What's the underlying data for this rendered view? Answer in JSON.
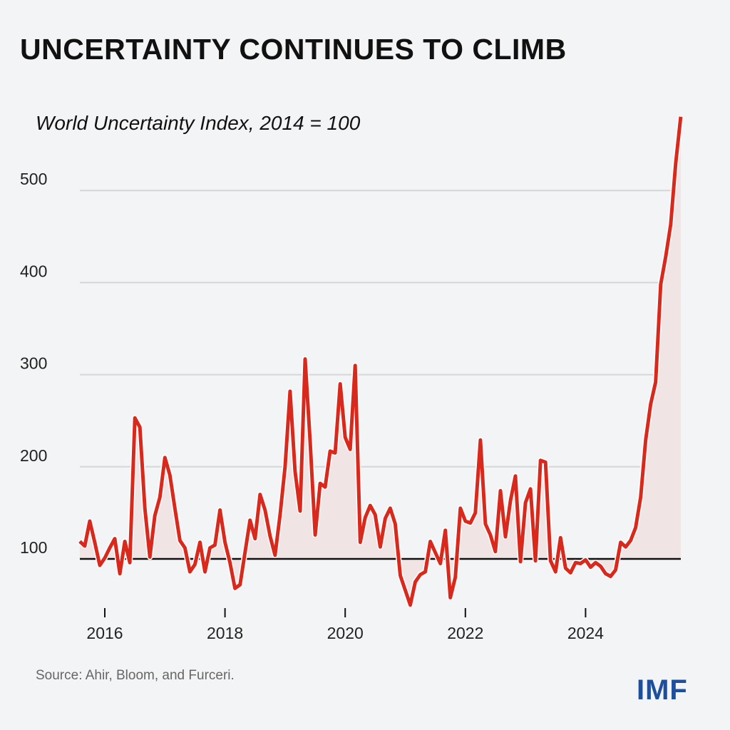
{
  "header": {
    "title": "UNCERTAINTY CONTINUES TO CLIMB",
    "subtitle": "World Uncertainty Index, 2014 = 100"
  },
  "footer": {
    "source": "Source: Ahir, Bloom, and Furceri.",
    "logo_text": "IMF"
  },
  "colors": {
    "line": "#d9291c",
    "fill": "#f0e4e5",
    "gridline": "#d6d6d8",
    "baseline": "#111111",
    "background": "#f3f4f6",
    "logo": "#1e4f9c"
  },
  "chart_data": {
    "type": "line",
    "title": "UNCERTAINTY CONTINUES TO CLIMB",
    "subtitle": "World Uncertainty Index, 2014 = 100",
    "xlabel": "",
    "ylabel": "",
    "x_start": "2015-08",
    "x_frequency": "monthly",
    "x_end": "2025-08",
    "ylim": [
      40,
      580
    ],
    "yticks": [
      100,
      200,
      300,
      400,
      500
    ],
    "xticks": [
      2016,
      2018,
      2020,
      2022,
      2024
    ],
    "baseline": 100,
    "grid": true,
    "fill_to_baseline": true,
    "values": [
      119,
      114,
      141,
      118,
      93,
      101,
      112,
      122,
      84,
      119,
      96,
      253,
      243,
      155,
      102,
      147,
      167,
      210,
      191,
      155,
      120,
      112,
      86,
      94,
      118,
      86,
      112,
      115,
      153,
      118,
      96,
      68,
      72,
      107,
      142,
      122,
      170,
      153,
      125,
      104,
      148,
      200,
      282,
      195,
      152,
      317,
      228,
      126,
      182,
      178,
      217,
      215,
      290,
      232,
      219,
      310,
      118,
      145,
      158,
      148,
      113,
      144,
      155,
      138,
      82,
      66,
      50,
      75,
      83,
      86,
      119,
      107,
      95,
      131,
      58,
      80,
      155,
      141,
      139,
      150,
      229,
      138,
      126,
      108,
      174,
      124,
      163,
      190,
      97,
      161,
      176,
      98,
      207,
      205,
      98,
      86,
      123,
      90,
      85,
      96,
      95,
      99,
      91,
      96,
      92,
      84,
      81,
      88,
      118,
      113,
      120,
      134,
      167,
      229,
      268,
      292,
      398,
      428,
      463,
      530,
      580
    ]
  }
}
